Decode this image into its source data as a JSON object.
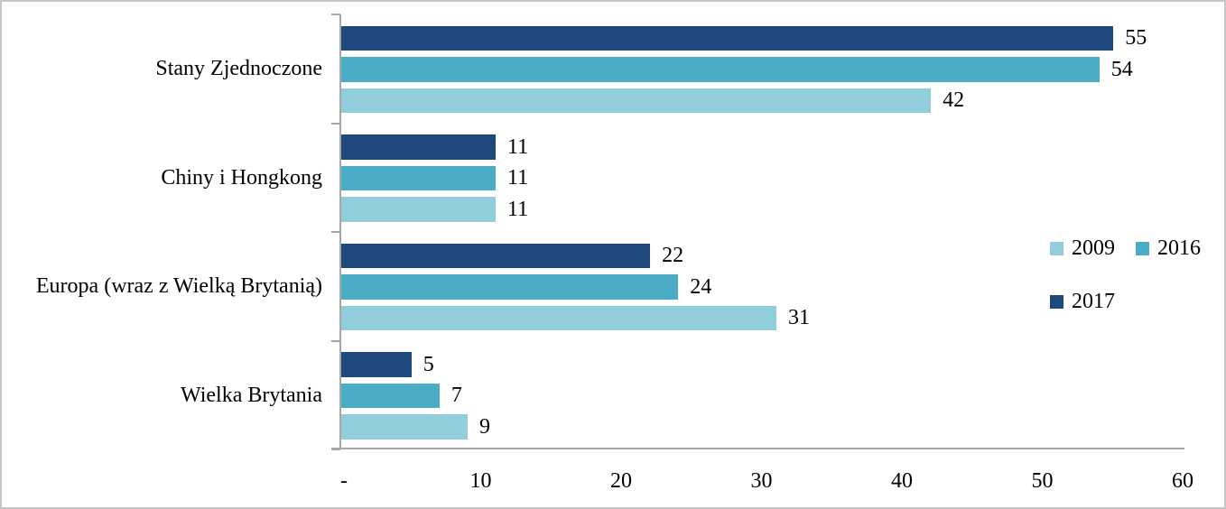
{
  "chart_data": {
    "type": "bar",
    "orientation": "horizontal",
    "title": "",
    "categories": [
      "Stany Zjednoczone",
      "Chiny i Hongkong",
      "Europa (wraz z Wielką Brytanią)",
      "Wielka Brytania"
    ],
    "series": [
      {
        "name": "2009",
        "color": "#92CDDC",
        "values": [
          42,
          11,
          31,
          9
        ]
      },
      {
        "name": "2016",
        "color": "#4BACC6",
        "values": [
          54,
          11,
          24,
          7
        ]
      },
      {
        "name": "2017",
        "color": "#1F497D",
        "values": [
          55,
          11,
          22,
          5
        ]
      }
    ],
    "row_order_top_to_bottom": [
      "2017",
      "2016",
      "2009"
    ],
    "xlim": [
      0,
      60
    ],
    "x_tick_values": [
      0,
      10,
      20,
      30,
      40,
      50,
      60
    ],
    "x_tick_labels": [
      "-",
      "10",
      "20",
      "30",
      "40",
      "50",
      "60"
    ],
    "grid": false,
    "data_labels": true,
    "legend_position": "right",
    "legend_rows": [
      [
        "2009",
        "2016"
      ],
      [
        "2017"
      ]
    ]
  },
  "style": {
    "axis_color": "#A6A6A6",
    "text_color": "#000000",
    "frame_border_color": "#C6C6C6",
    "background": "#FFFFFF"
  }
}
